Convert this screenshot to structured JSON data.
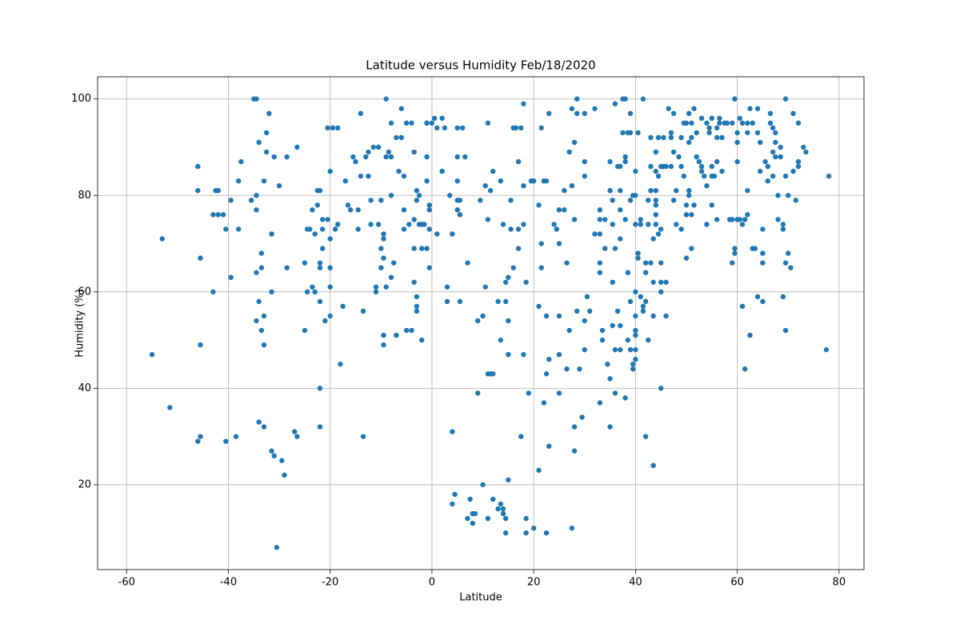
{
  "chart_data": {
    "type": "scatter",
    "title": "Latitude versus Humidity Feb/18/2020",
    "xlabel": "Latitude",
    "ylabel": "Humidity (%)",
    "color": "#1f77b4",
    "grid": true,
    "xlim": [
      -65.7,
      84.9
    ],
    "ylim": [
      2.4,
      104.6
    ],
    "xticks": [
      -60,
      -40,
      -20,
      0,
      20,
      40,
      60,
      80
    ],
    "yticks": [
      20,
      40,
      60,
      80,
      100
    ],
    "x": [
      -55,
      -53,
      -51.5,
      -46,
      -46,
      -46,
      -45.5,
      -45.5,
      -45.5,
      -43,
      -42.5,
      -42,
      -42,
      -43,
      -41,
      -40.5,
      -40.5,
      -39.5,
      -39.5,
      -38.5,
      -38,
      -38,
      -37.5,
      -35.5,
      -35,
      -34.5,
      -34.5,
      -34.5,
      -34.5,
      -34.5,
      -34,
      -34,
      -34,
      -33.5,
      -33.5,
      -33.5,
      -33,
      -33,
      -33,
      -33,
      -32.5,
      -32.5,
      -32,
      -31.5,
      -31.5,
      -31,
      -31.5,
      -31,
      -30.5,
      -30,
      -29.5,
      -29,
      -28.5,
      -28.5,
      -27,
      -26.5,
      -26.5,
      -25,
      -25,
      -24.5,
      -24.5,
      -24,
      -23.5,
      -23.5,
      -23,
      -23,
      -22.5,
      -22.5,
      -22,
      -22,
      -22,
      -22,
      -22,
      -22,
      -21.5,
      -21.5,
      -21.5,
      -21,
      -20.5,
      -20.5,
      -20,
      -20,
      -20,
      -20,
      -20,
      -19.5,
      -19,
      -18.5,
      -18.5,
      -18,
      -17.5,
      -17,
      -16.5,
      -16,
      -15.5,
      -15,
      -14.5,
      -14.5,
      -14,
      -14,
      -13.5,
      -13.5,
      -13,
      -12.5,
      -12.5,
      -12,
      -12,
      -11.5,
      -11,
      -11,
      -10.5,
      -10.5,
      -10,
      -10,
      -10,
      -9.5,
      -9.5,
      -9.5,
      -9.5,
      -9.5,
      -9,
      -9,
      -9,
      -8.5,
      -8,
      -8,
      -8,
      -8,
      -7.5,
      -7,
      -7,
      -6.5,
      -6,
      -6,
      -5.5,
      -5.5,
      -5.5,
      -5,
      -5,
      -4.5,
      -4,
      -4,
      -3.5,
      -3.5,
      -3.5,
      -3.5,
      -3,
      -3,
      -3,
      -3,
      -3,
      -2.5,
      -2.5,
      -2,
      -2,
      -2,
      -1.5,
      -1,
      -1,
      -1,
      -1,
      -0.5,
      -0.5,
      -0.5,
      -1,
      -0.5,
      0,
      0.5,
      1,
      1,
      2,
      2,
      2.5,
      3,
      3,
      3.5,
      4,
      4,
      4,
      4.5,
      5,
      5,
      5,
      5,
      5,
      5.5,
      5.5,
      5.5,
      6,
      6.5,
      7,
      7,
      7.5,
      8,
      8,
      8.5,
      9,
      9,
      9.5,
      10,
      10,
      10.5,
      10.5,
      11,
      11,
      11,
      11,
      11.5,
      11.5,
      12,
      12,
      12,
      13,
      13,
      13.5,
      13.5,
      13.5,
      14,
      14,
      14,
      14.5,
      14.5,
      14.5,
      14.5,
      15,
      15,
      15,
      15,
      15.5,
      15.5,
      16,
      16,
      16.5,
      17,
      17,
      17,
      17.5,
      17.5,
      18,
      18,
      18,
      18,
      18.5,
      18.5,
      18.5,
      19,
      19.5,
      20,
      20,
      21,
      21,
      21,
      21.5,
      21.5,
      21.5,
      22,
      22,
      22.5,
      22.5,
      22.5,
      22.5,
      23,
      23,
      23,
      24,
      24.5,
      25,
      25,
      25,
      25,
      25,
      26,
      26,
      26.5,
      26.5,
      27,
      27,
      27.5,
      27.5,
      27.5,
      28,
      28,
      28,
      28,
      28.5,
      28.5,
      28.5,
      29,
      29.5,
      30,
      30,
      30,
      30,
      30,
      30.5,
      31,
      32,
      32,
      33,
      33,
      33,
      33,
      33,
      33,
      33.5,
      33.5,
      34,
      34,
      34.5,
      35,
      35,
      35,
      35,
      35.5,
      35.5,
      35.5,
      35.5,
      36,
      36,
      36,
      36,
      36.5,
      36.5,
      37,
      37,
      37,
      37,
      37,
      37,
      37.5,
      37.5,
      38,
      38,
      38,
      38,
      38,
      38.5,
      38.5,
      38.5,
      39,
      39,
      39,
      39,
      39,
      39.5,
      39.5,
      39.5,
      40,
      40,
      40,
      40,
      40,
      40,
      40,
      40,
      40,
      40.5,
      40.5,
      40.5,
      41,
      41,
      41,
      41.5,
      41.5,
      41.5,
      42,
      42,
      42,
      42,
      42.5,
      42.5,
      42.5,
      43,
      43,
      43,
      43,
      43.5,
      43.5,
      43.5,
      43.5,
      44,
      44,
      44,
      44,
      44,
      44,
      44,
      44.5,
      44.5,
      44.5,
      45,
      45,
      45,
      45,
      45,
      45,
      45.5,
      45.5,
      46,
      46,
      46,
      46.5,
      47,
      47,
      47,
      47.5,
      47.5,
      47.5,
      48,
      48,
      48.5,
      49,
      49,
      49,
      49.5,
      49.5,
      50,
      50,
      50,
      50,
      50.5,
      50.5,
      50.5,
      50.5,
      51,
      51,
      51,
      51,
      51.5,
      51.5,
      52,
      52,
      52.5,
      53,
      53,
      53,
      53.5,
      54,
      54,
      54,
      54.5,
      54.5,
      55,
      55,
      55,
      55,
      55.5,
      56,
      56,
      56,
      56,
      56.5,
      56.5,
      57,
      57,
      57.5,
      58,
      58.5,
      59,
      59,
      59,
      59.5,
      59.5,
      59.5,
      60,
      60,
      60,
      60,
      60.5,
      60.5,
      61,
      61,
      61,
      61.5,
      61.5,
      62,
      62,
      62,
      62,
      62.5,
      62.5,
      63,
      63,
      63.5,
      64,
      64,
      64,
      64.5,
      64.5,
      65,
      65,
      65,
      65,
      65.5,
      66,
      66,
      66.5,
      66.5,
      67,
      67,
      67,
      67.5,
      67.5,
      67.5,
      68,
      68,
      68.5,
      68.5,
      69,
      69,
      69,
      69.5,
      69.5,
      69.5,
      69.5,
      70,
      70,
      70.5,
      71,
      71,
      71.5,
      72,
      72,
      72,
      73,
      73.5,
      77.5,
      78
    ],
    "values": [
      47,
      71,
      36,
      86,
      81,
      29,
      30,
      67,
      49,
      76,
      81,
      81,
      76,
      60,
      76,
      73,
      29,
      79,
      63,
      30,
      83,
      73,
      87,
      79,
      100,
      100,
      80,
      77,
      54,
      64,
      91,
      33,
      58,
      68,
      65,
      52,
      49,
      32,
      83,
      55,
      89,
      93,
      97,
      72,
      60,
      88,
      27,
      26,
      7,
      82,
      25,
      22,
      88,
      65,
      31,
      30,
      90,
      66,
      52,
      73,
      60,
      73,
      61,
      77,
      72,
      60,
      81,
      78,
      66,
      65,
      58,
      40,
      32,
      81,
      73,
      69,
      75,
      54,
      94,
      75,
      71,
      65,
      61,
      55,
      85,
      94,
      73,
      74,
      94,
      45,
      57,
      83,
      78,
      77,
      88,
      87,
      73,
      77,
      84,
      97,
      30,
      56,
      88,
      89,
      84,
      79,
      74,
      90,
      61,
      60,
      74,
      90,
      79,
      69,
      65,
      72,
      71,
      67,
      49,
      51,
      100,
      88,
      61,
      89,
      95,
      88,
      80,
      63,
      66,
      92,
      51,
      85,
      92,
      98,
      73,
      77,
      84,
      95,
      52,
      74,
      52,
      95,
      89,
      62,
      69,
      75,
      79,
      57,
      59,
      56,
      81,
      80,
      74,
      69,
      74,
      50,
      74,
      95,
      95,
      88,
      83,
      78,
      77,
      73,
      69,
      65,
      95,
      96,
      94,
      72,
      96,
      85,
      94,
      61,
      58,
      80,
      72,
      31,
      16,
      18,
      94,
      88,
      83,
      79,
      77,
      76,
      79,
      58,
      94,
      88,
      66,
      13,
      17,
      14,
      12,
      14,
      39,
      54,
      79,
      55,
      20,
      82,
      61,
      95,
      75,
      43,
      13,
      81,
      43,
      85,
      43,
      17,
      15,
      58,
      83,
      50,
      16,
      15,
      14,
      74,
      58,
      62,
      13,
      10,
      21,
      63,
      54,
      47,
      79,
      73,
      65,
      94,
      94,
      87,
      69,
      73,
      30,
      94,
      99,
      82,
      74,
      47,
      62,
      13,
      10,
      39,
      83,
      11,
      83,
      78,
      57,
      23,
      94,
      70,
      65,
      83,
      37,
      83,
      55,
      43,
      10,
      28,
      46,
      97,
      74,
      73,
      77,
      70,
      55,
      47,
      39,
      77,
      81,
      66,
      44,
      89,
      52,
      98,
      82,
      11,
      91,
      75,
      32,
      27,
      100,
      97,
      56,
      44,
      34,
      97,
      87,
      84,
      54,
      48,
      59,
      56,
      98,
      72,
      77,
      72,
      75,
      66,
      64,
      37,
      52,
      50,
      69,
      75,
      45,
      87,
      81,
      42,
      32,
      79,
      74,
      62,
      53,
      99,
      69,
      48,
      39,
      86,
      56,
      86,
      81,
      77,
      71,
      53,
      48,
      100,
      93,
      100,
      87,
      88,
      75,
      38,
      93,
      64,
      50,
      97,
      79,
      93,
      58,
      48,
      80,
      45,
      44,
      85,
      80,
      74,
      60,
      55,
      52,
      51,
      48,
      46,
      93,
      68,
      67,
      75,
      74,
      59,
      100,
      57,
      56,
      66,
      64,
      58,
      30,
      79,
      74,
      50,
      92,
      86,
      81,
      66,
      71,
      62,
      55,
      24,
      89,
      85,
      81,
      79,
      78,
      76,
      74,
      92,
      84,
      72,
      86,
      73,
      66,
      62,
      60,
      40,
      92,
      86,
      62,
      86,
      55,
      98,
      93,
      92,
      86,
      97,
      89,
      79,
      74,
      81,
      88,
      92,
      86,
      73,
      95,
      84,
      95,
      78,
      76,
      67,
      97,
      91,
      81,
      80,
      95,
      92,
      76,
      69,
      98,
      78,
      93,
      88,
      87,
      96,
      85,
      86,
      84,
      95,
      82,
      74,
      94,
      93,
      96,
      78,
      84,
      86,
      84,
      92,
      87,
      75,
      94,
      95,
      96,
      92,
      85,
      95,
      95,
      75,
      95,
      75,
      66,
      100,
      69,
      68,
      93,
      91,
      87,
      75,
      96,
      75,
      95,
      74,
      57,
      75,
      44,
      95,
      93,
      81,
      76,
      98,
      51,
      95,
      69,
      69,
      98,
      93,
      59,
      91,
      85,
      73,
      68,
      66,
      58,
      87,
      86,
      83,
      97,
      95,
      94,
      89,
      84,
      93,
      91,
      88,
      80,
      75,
      90,
      88,
      74,
      73,
      59,
      100,
      84,
      66,
      52,
      80,
      68,
      65,
      97,
      85,
      79,
      86,
      87,
      95,
      90,
      89,
      48,
      84
    ]
  }
}
